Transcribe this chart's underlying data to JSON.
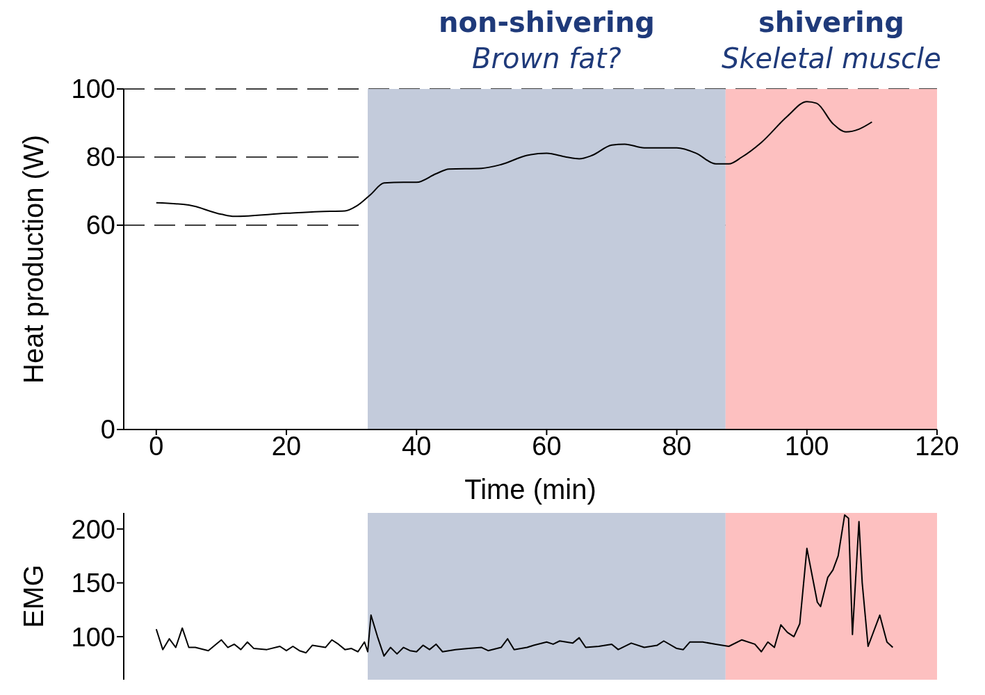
{
  "chart_data": [
    {
      "type": "line",
      "xlabel": "Time (min)",
      "ylabel": "Heat production (W)",
      "x": [
        0,
        5,
        10,
        12,
        20,
        25,
        29,
        31,
        33,
        35,
        38,
        40,
        43,
        45,
        50,
        53,
        57,
        60,
        63,
        65,
        67,
        70,
        72,
        75,
        80,
        83,
        86,
        88,
        90,
        93,
        97,
        100,
        101.5,
        104,
        106,
        108,
        110
      ],
      "series": [
        {
          "color": "#000000",
          "values": [
            66.6,
            65.9,
            63.2,
            62.6,
            63.5,
            64,
            64.2,
            65.9,
            69.1,
            72.4,
            72.6,
            72.6,
            75.1,
            76.5,
            76.7,
            77.8,
            80.5,
            81.1,
            80,
            79.5,
            80.5,
            83.5,
            83.8,
            82.7,
            82.7,
            81.1,
            78,
            78,
            80,
            84.3,
            92,
            96.3,
            95.8,
            89.8,
            87.4,
            88.2,
            90.3
          ]
        }
      ],
      "xlim": [
        -5,
        120
      ],
      "xticks": [
        0,
        20,
        40,
        60,
        80,
        100,
        120
      ],
      "ylim": [
        0,
        100
      ],
      "yticks": [
        0,
        60,
        80,
        100
      ],
      "grid": "y",
      "marker": "none",
      "line_style": "solid",
      "legend": false,
      "bands": [
        {
          "axis": "x",
          "from": 32.5,
          "to": 87.5,
          "label": "non-shivering\nBrown fat?",
          "color": "#c3cbdb"
        },
        {
          "axis": "x",
          "from": 87.5,
          "to": 120,
          "label": "shivering\nSkeletal muscle",
          "color": "#fdc0c0"
        }
      ]
    },
    {
      "type": "line",
      "ylabel": "EMG",
      "x": [
        0,
        1,
        2,
        3,
        4,
        5,
        6,
        8,
        10,
        11,
        12,
        13,
        14,
        15,
        17,
        19,
        20,
        21,
        22,
        23,
        24,
        25,
        26,
        27,
        28,
        29,
        30,
        31,
        32,
        32.5,
        33,
        34,
        35,
        36,
        37,
        38,
        39,
        40,
        41,
        42,
        43,
        44,
        46,
        48,
        50,
        51,
        53,
        54,
        55,
        57,
        58,
        60,
        61,
        62,
        64,
        65,
        66,
        68,
        70,
        71,
        73,
        75,
        77,
        78,
        80,
        81,
        82,
        84,
        86,
        88,
        90,
        92,
        93,
        94,
        95,
        96,
        97,
        98,
        98.9,
        100,
        101.6,
        102.1,
        103.2,
        104,
        104.8,
        105.8,
        106.4,
        107,
        108,
        108.5,
        109.4,
        111.2,
        112.3,
        113.2
      ],
      "series": [
        {
          "color": "#000000",
          "values": [
            107,
            88,
            98,
            90,
            108,
            90,
            90,
            87,
            97,
            90,
            93,
            88,
            95,
            89,
            88,
            91,
            87,
            91,
            87,
            85,
            92,
            91,
            90,
            97,
            93,
            88,
            89,
            86,
            95,
            86,
            120,
            100,
            82,
            90,
            84,
            90,
            87,
            86,
            92,
            88,
            93,
            86,
            88,
            89,
            90,
            87,
            90,
            98,
            88,
            90,
            92,
            95,
            93,
            96,
            94,
            99,
            90,
            91,
            93,
            88,
            94,
            90,
            92,
            96,
            89,
            88,
            95,
            95,
            93,
            91,
            97,
            93,
            86,
            95,
            90,
            111,
            104,
            100,
            112,
            182,
            132,
            128,
            155,
            162,
            175,
            213,
            210,
            102,
            207,
            150,
            91,
            120,
            95,
            90
          ]
        }
      ],
      "xlim": [
        -5,
        120
      ],
      "ylim": [
        60,
        215
      ],
      "yticks": [
        100,
        150,
        200
      ],
      "tick_labels": "y",
      "marker": "none",
      "line_style": "solid",
      "legend": false,
      "bands": [
        {
          "axis": "x",
          "from": 32.5,
          "to": 87.5,
          "color": "#c3cbdb"
        },
        {
          "axis": "x",
          "from": 87.5,
          "to": 120,
          "color": "#fdc0c0"
        }
      ]
    }
  ]
}
